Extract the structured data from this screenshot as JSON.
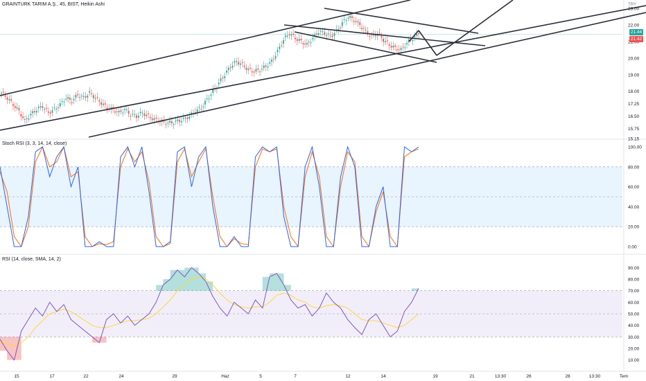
{
  "header": {
    "title": "GRAINTURK TARIM A.Ş., 45, BIST, Heikin Ashi",
    "currency": "TRY",
    "price_upper": "21.44",
    "price_lower": "21.42"
  },
  "colors": {
    "up": "#26a69a",
    "down": "#ef5350",
    "trendline": "#2a2e39",
    "stoch_k": "#2962ff",
    "stoch_d": "#ff6d00",
    "stoch_band": "#2196f3",
    "rsi_line": "#7e57c2",
    "rsi_ma": "#fdd835",
    "rsi_band": "#7e57c2",
    "gridline": "#f0f3fa"
  },
  "chart_data": [
    {
      "type": "candlestick",
      "title": "GRAINTURK TARIM A.Ş., 45, BIST, Heikin Ashi",
      "y_ticks": [
        15.15,
        15.75,
        16.5,
        17.25,
        18.0,
        19.0,
        20.0,
        21.0,
        22.0,
        23.0
      ],
      "ylim": [
        15.15,
        23.0
      ],
      "last_price": 21.44,
      "x_ticks": [
        "15",
        "17",
        "22",
        "24",
        "29",
        "Haz",
        "5",
        "7",
        "12",
        "14",
        "19",
        "21",
        "13:30",
        "26",
        "28",
        "13:30",
        "Tem"
      ],
      "ohlc_close_path": [
        17.9,
        17.6,
        17.2,
        16.8,
        16.2,
        16.6,
        16.9,
        17.1,
        16.7,
        16.9,
        17.2,
        17.6,
        17.4,
        17.8,
        17.6,
        17.9,
        17.6,
        17.3,
        17.0,
        16.9,
        16.7,
        16.9,
        16.6,
        16.5,
        16.7,
        16.5,
        16.3,
        16.2,
        16.1,
        16.1,
        16.2,
        16.3,
        16.5,
        16.8,
        17.0,
        17.5,
        18.0,
        18.5,
        19.0,
        19.5,
        19.8,
        19.6,
        19.3,
        19.2,
        19.3,
        19.5,
        19.8,
        20.4,
        21.1,
        21.5,
        21.2,
        21.0,
        20.8,
        21.2,
        21.6,
        21.5,
        21.3,
        21.6,
        22.1,
        22.5,
        22.3,
        22.0,
        21.6,
        21.3,
        21.5,
        21.1,
        20.8,
        20.6,
        20.5,
        20.9,
        21.2,
        21.44
      ]
    },
    {
      "type": "line",
      "title": "Stoch RSI (3, 3, 14, 14, close)",
      "y_ticks": [
        0,
        20,
        40,
        60,
        80,
        100
      ],
      "ylim": [
        0,
        100
      ],
      "band": [
        20,
        80
      ],
      "series": [
        {
          "name": "K",
          "values": [
            80,
            40,
            0,
            0,
            30,
            95,
            100,
            70,
            90,
            100,
            60,
            80,
            0,
            0,
            5,
            0,
            0,
            90,
            100,
            80,
            100,
            55,
            0,
            0,
            5,
            95,
            100,
            60,
            90,
            100,
            40,
            0,
            0,
            10,
            0,
            0,
            90,
            100,
            95,
            100,
            30,
            0,
            0,
            80,
            100,
            60,
            0,
            0,
            70,
            100,
            80,
            0,
            0,
            40,
            60,
            0,
            0,
            100,
            95,
            100
          ]
        },
        {
          "name": "D",
          "values": [
            75,
            55,
            10,
            0,
            20,
            85,
            100,
            80,
            85,
            100,
            70,
            75,
            10,
            0,
            3,
            2,
            5,
            80,
            98,
            85,
            95,
            65,
            10,
            0,
            3,
            85,
            98,
            70,
            85,
            98,
            50,
            10,
            0,
            8,
            3,
            2,
            80,
            98,
            95,
            98,
            40,
            10,
            0,
            70,
            95,
            70,
            10,
            0,
            60,
            95,
            85,
            10,
            0,
            35,
            55,
            10,
            0,
            90,
            95,
            98
          ]
        }
      ]
    },
    {
      "type": "line",
      "title": "RSI (14, close, SMA, 14, 2)",
      "y_ticks": [
        10,
        20,
        30,
        40,
        50,
        60,
        70,
        80,
        90
      ],
      "ylim": [
        5,
        95
      ],
      "band": [
        30,
        70
      ],
      "series": [
        {
          "name": "RSI",
          "values": [
            28,
            18,
            10,
            35,
            45,
            55,
            48,
            60,
            52,
            58,
            45,
            40,
            35,
            30,
            25,
            45,
            50,
            42,
            48,
            40,
            45,
            50,
            60,
            75,
            80,
            88,
            82,
            90,
            85,
            78,
            65,
            55,
            48,
            60,
            55,
            50,
            62,
            55,
            82,
            85,
            75,
            62,
            55,
            58,
            48,
            55,
            68,
            60,
            55,
            45,
            38,
            32,
            45,
            50,
            40,
            30,
            35,
            52,
            60,
            72
          ]
        },
        {
          "name": "RSI-based MA",
          "values": [
            25,
            24,
            22,
            25,
            30,
            38,
            44,
            50,
            52,
            54,
            52,
            48,
            44,
            40,
            38,
            38,
            40,
            42,
            44,
            44,
            45,
            46,
            50,
            56,
            62,
            70,
            76,
            80,
            82,
            80,
            75,
            68,
            62,
            58,
            56,
            55,
            56,
            56,
            60,
            66,
            68,
            66,
            62,
            60,
            56,
            55,
            57,
            58,
            57,
            55,
            50,
            45,
            44,
            44,
            42,
            40,
            38,
            40,
            45,
            50
          ]
        }
      ]
    }
  ]
}
